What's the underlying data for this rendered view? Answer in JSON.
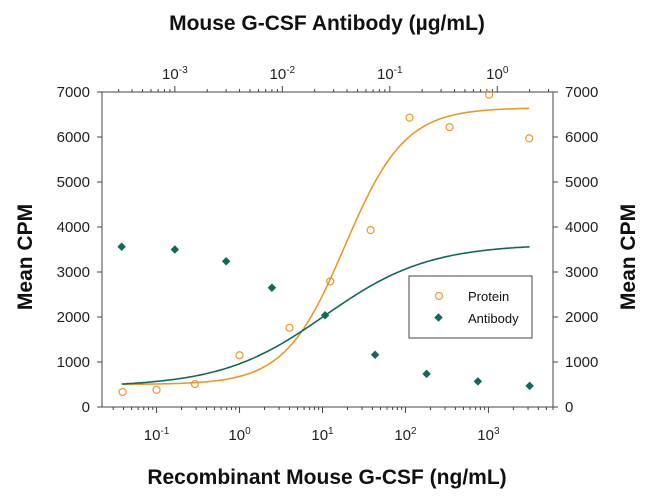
{
  "chart_data": {
    "type": "scatter",
    "title": "",
    "top_xlabel": "Mouse G-CSF Antibody (µg/mL)",
    "xlabel": "Recombinant Mouse G-CSF (ng/mL)",
    "ylabel_left": "Mean CPM",
    "ylabel_right": "Mean CPM",
    "x_scale": "log",
    "xlim_bottom": [
      0.022,
      6000
    ],
    "xlim_top": [
      0.00021,
      3.3
    ],
    "ylim": [
      0,
      7000
    ],
    "y_ticks": [
      0,
      1000,
      2000,
      3000,
      4000,
      5000,
      6000,
      7000
    ],
    "x_ticks_bottom": [
      {
        "base": "10",
        "exp": "-1",
        "v": 0.1
      },
      {
        "base": "10",
        "exp": "0",
        "v": 1
      },
      {
        "base": "10",
        "exp": "1",
        "v": 10
      },
      {
        "base": "10",
        "exp": "2",
        "v": 100
      },
      {
        "base": "10",
        "exp": "3",
        "v": 1000
      }
    ],
    "x_ticks_top": [
      {
        "base": "10",
        "exp": "-3",
        "v": 0.001
      },
      {
        "base": "10",
        "exp": "-2",
        "v": 0.01
      },
      {
        "base": "10",
        "exp": "-1",
        "v": 0.1
      },
      {
        "base": "10",
        "exp": "0",
        "v": 1
      }
    ],
    "grid": false,
    "legend_placement": "center-right",
    "series": [
      {
        "name": "Protein",
        "axis": "bottom",
        "marker": "open-circle",
        "color": "#E39B2A",
        "x": [
          0.039,
          0.1,
          0.29,
          1.0,
          4.0,
          12.4,
          38,
          112,
          340,
          1020,
          3100
        ],
        "y": [
          335,
          380,
          510,
          1150,
          1760,
          2790,
          3930,
          6430,
          6220,
          6940,
          5970
        ],
        "fit": {
          "bottom": 500,
          "top": 6650,
          "ec50": 18.6,
          "hill": 1.2
        }
      },
      {
        "name": "Antibody",
        "axis": "top",
        "marker": "filled-diamond",
        "color": "#12685D",
        "x": [
          0.00032,
          0.001,
          0.003,
          0.008,
          0.025,
          0.073,
          0.22,
          0.66,
          2.0
        ],
        "y": [
          3560,
          3500,
          3240,
          2650,
          2040,
          1160,
          735,
          570,
          470
        ],
        "fit": {
          "bottom": 450,
          "top": 3620,
          "ec50": 0.025,
          "hill": 0.9
        }
      }
    ]
  }
}
